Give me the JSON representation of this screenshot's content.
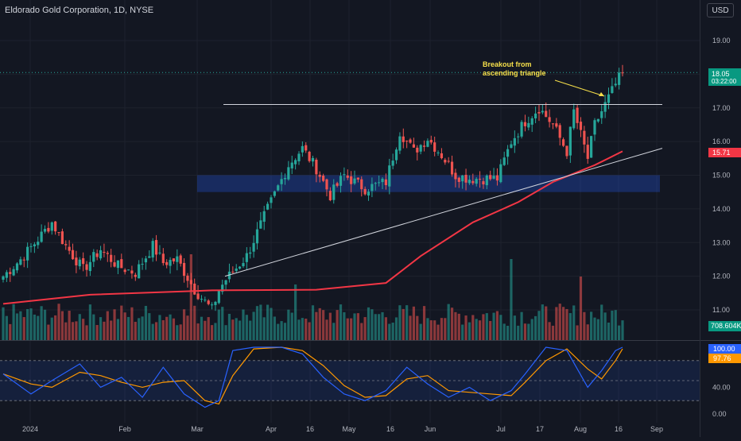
{
  "header": {
    "title": "Eldorado Gold Corporation, 1D, NYSE",
    "currency_button": "USD"
  },
  "annotation": {
    "line1": "Breakout from",
    "line2": "ascending triangle",
    "color": "#f7e04a"
  },
  "badges": {
    "last_price": "18.05",
    "countdown": "03:22:00",
    "ma_value": "15.71",
    "volume_value": "708.604K",
    "stoch_k": "100.00",
    "stoch_d": "97.76"
  },
  "colors": {
    "up": "#26a69a",
    "down": "#ef5350",
    "ma": "#f23645",
    "k_line": "#2962ff",
    "d_line": "#ff9800",
    "zone": "#2962ff",
    "background": "#131722"
  },
  "chart_data": {
    "type": "candlestick",
    "x_ticks": [
      "2024",
      "Feb",
      "Mar",
      "Apr",
      "16",
      "May",
      "16",
      "Jun",
      "Jul",
      "17",
      "Aug",
      "16",
      "Sep"
    ],
    "y_ticks": [
      "19.00",
      "18.00",
      "17.00",
      "16.00",
      "15.00",
      "14.00",
      "13.00",
      "12.00",
      "11.00"
    ],
    "ylim": [
      10.3,
      19.6
    ],
    "ohlc_points": [
      {
        "t": 0,
        "c": 12.0
      },
      {
        "t": 5,
        "c": 12.5
      },
      {
        "t": 10,
        "c": 13.1
      },
      {
        "t": 14,
        "c": 13.6
      },
      {
        "t": 18,
        "c": 12.9
      },
      {
        "t": 23,
        "c": 12.2
      },
      {
        "t": 28,
        "c": 12.8
      },
      {
        "t": 33,
        "c": 12.3
      },
      {
        "t": 38,
        "c": 12.1
      },
      {
        "t": 43,
        "c": 12.9
      },
      {
        "t": 46,
        "c": 12.4
      },
      {
        "t": 50,
        "c": 12.5
      },
      {
        "t": 55,
        "c": 11.6
      },
      {
        "t": 60,
        "c": 11.0
      },
      {
        "t": 62,
        "c": 11.6
      },
      {
        "t": 64,
        "c": 11.9
      },
      {
        "t": 70,
        "c": 12.6
      },
      {
        "t": 76,
        "c": 14.0
      },
      {
        "t": 82,
        "c": 15.3
      },
      {
        "t": 86,
        "c": 15.8
      },
      {
        "t": 90,
        "c": 15.2
      },
      {
        "t": 94,
        "c": 14.4
      },
      {
        "t": 98,
        "c": 15.0
      },
      {
        "t": 104,
        "c": 14.6
      },
      {
        "t": 110,
        "c": 14.8
      },
      {
        "t": 114,
        "c": 16.3
      },
      {
        "t": 118,
        "c": 15.7
      },
      {
        "t": 122,
        "c": 16.1
      },
      {
        "t": 126,
        "c": 15.6
      },
      {
        "t": 130,
        "c": 15.0
      },
      {
        "t": 134,
        "c": 14.9
      },
      {
        "t": 138,
        "c": 14.9
      },
      {
        "t": 142,
        "c": 14.9
      },
      {
        "t": 146,
        "c": 16.0
      },
      {
        "t": 150,
        "c": 16.6
      },
      {
        "t": 154,
        "c": 17.0
      },
      {
        "t": 158,
        "c": 16.5
      },
      {
        "t": 162,
        "c": 15.7
      },
      {
        "t": 164,
        "c": 16.9
      },
      {
        "t": 166,
        "c": 16.2
      },
      {
        "t": 168,
        "c": 15.5
      },
      {
        "t": 170,
        "c": 16.5
      },
      {
        "t": 173,
        "c": 17.1
      },
      {
        "t": 176,
        "c": 17.7
      },
      {
        "t": 178,
        "c": 18.05
      }
    ],
    "moving_average": {
      "latest": 15.71
    },
    "horizontal_resistance": 17.1,
    "support_zone": [
      14.5,
      15.0
    ],
    "rising_trendline": {
      "from": 12.0,
      "to": 15.8
    },
    "volume_latest": "708.604K",
    "stochastic": {
      "k": 100.0,
      "d": 97.76,
      "levels": [
        "100.00",
        "40.00",
        "0.00"
      ]
    }
  }
}
